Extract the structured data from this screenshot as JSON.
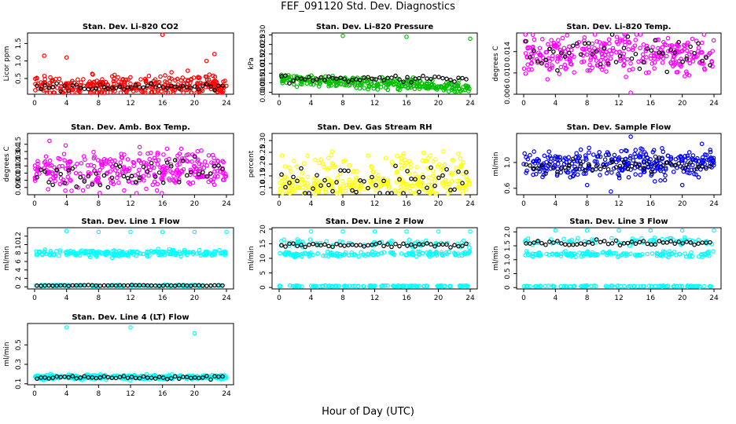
{
  "page": {
    "title": "FEF_091120  Std. Dev. Diagnostics",
    "xlabel": "Hour of Day (UTC)"
  },
  "chart_data": [
    {
      "type": "scatter",
      "title": "Stan. Dev. Li-820 CO2",
      "ylabel": "Licor ppm",
      "color": "#ff0000",
      "xlim": [
        0,
        24
      ],
      "ylim": [
        0.05,
        1.8
      ],
      "yticks": [
        0.5,
        1.0,
        1.5
      ],
      "ytick_labels": [
        "0.5",
        "1.0",
        "1.5"
      ],
      "xticks": [
        0,
        4,
        8,
        12,
        16,
        20,
        24
      ],
      "base": 0.3,
      "spread": 0.15,
      "outliers": [
        [
          16,
          1.75
        ],
        [
          22.5,
          1.2
        ],
        [
          1.2,
          1.15
        ],
        [
          4,
          1.1
        ],
        [
          21.5,
          1.0
        ]
      ],
      "black_base": 0.25,
      "black_spread": 0.05
    },
    {
      "type": "scatter",
      "title": "Stan. Dev. Li-820 Pressure",
      "ylabel": "kPa",
      "color": "#00c000",
      "xlim": [
        0,
        24
      ],
      "ylim": [
        -0.001,
        0.031
      ],
      "yticks": [
        0,
        0.005,
        0.01,
        0.015,
        0.02,
        0.025,
        0.03
      ],
      "ytick_labels": [
        "0.000",
        "0.005",
        "0.010",
        "0.015",
        "0.020",
        "0.025",
        "0.030"
      ],
      "xticks": [
        0,
        4,
        8,
        12,
        16,
        20,
        24
      ],
      "base": 0.007,
      "spread": 0.0015,
      "trend": -0.0002,
      "outliers": [
        [
          8,
          0.0295
        ],
        [
          16,
          0.029
        ],
        [
          24,
          0.028
        ]
      ],
      "black_base": 0.007,
      "black_spread": 0.001
    },
    {
      "type": "scatter",
      "title": "Stan. Dev. Li-820 Temp.",
      "ylabel": "degrees C",
      "color": "#ff00ff",
      "xlim": [
        0,
        24
      ],
      "ylim": [
        0.006,
        0.0175
      ],
      "yticks": [
        0.006,
        0.01,
        0.014
      ],
      "ytick_labels": [
        "0.006",
        "0.010",
        "0.014"
      ],
      "xticks": [
        0,
        4,
        8,
        12,
        16,
        20,
        24
      ],
      "base": 0.0135,
      "spread": 0.0018,
      "outliers": [
        [
          13.5,
          0.0062
        ],
        [
          3,
          0.0088
        ]
      ],
      "black_base": 0.0135,
      "black_spread": 0.0015
    },
    {
      "type": "scatter",
      "title": "Stan. Dev. Amb. Box Temp.",
      "ylabel": "degrees C",
      "color": "#ff00ff",
      "xlim": [
        0,
        24
      ],
      "ylim": [
        0.08,
        0.165
      ],
      "yticks": [
        0.09,
        0.1,
        0.11,
        0.12,
        0.13,
        0.14,
        0.15
      ],
      "ytick_labels": [
        "0.09",
        "0.10",
        "0.11",
        "0.12",
        "0.13",
        "0.14",
        "0.15"
      ],
      "xticks": [
        0,
        4,
        8,
        12,
        16,
        20,
        24
      ],
      "base": 0.115,
      "spread": 0.013,
      "outliers": [],
      "black_base": 0.11,
      "black_spread": 0.01
    },
    {
      "type": "scatter",
      "title": "Stan. Dev. Gas Stream RH",
      "ylabel": "percent",
      "color": "#ffff00",
      "xlim": [
        0,
        24
      ],
      "ylim": [
        0.07,
        0.33
      ],
      "yticks": [
        0.1,
        0.15,
        0.2,
        0.25,
        0.3
      ],
      "ytick_labels": [
        "0.10",
        "0.15",
        "0.20",
        "0.25",
        "0.30"
      ],
      "xticks": [
        0,
        4,
        8,
        12,
        16,
        20,
        24
      ],
      "base": 0.11,
      "spread": 0.02,
      "outliers": [],
      "upper_band": 0.2,
      "black_base": 0.12,
      "black_spread": 0.04
    },
    {
      "type": "scatter",
      "title": "Stan. Dev. Sample Flow",
      "ylabel": "ml/min",
      "color": "#0000ff",
      "xlim": [
        0,
        24
      ],
      "ylim": [
        0.5,
        1.45
      ],
      "yticks": [
        0.6,
        1.0
      ],
      "ytick_labels": [
        "0.6",
        "1.0"
      ],
      "xticks": [
        0,
        4,
        8,
        12,
        16,
        20,
        24
      ],
      "base": 1.0,
      "spread": 0.1,
      "outliers": [
        [
          13.5,
          1.4
        ],
        [
          11,
          0.55
        ],
        [
          20,
          0.65
        ],
        [
          8,
          0.65
        ]
      ],
      "black_base": 0.95,
      "black_spread": 0.05
    },
    {
      "type": "scatter",
      "title": "Stan. Dev. Line 1 Flow",
      "ylabel": "ml/min",
      "color": "#00ffff",
      "xlim": [
        0,
        24
      ],
      "ylim": [
        -0.5,
        14
      ],
      "yticks": [
        0,
        2,
        4,
        6,
        8,
        10,
        12
      ],
      "ytick_labels": [
        "0",
        "2",
        "4",
        "6",
        "8",
        "10",
        "12"
      ],
      "xticks": [
        0,
        4,
        8,
        12,
        16,
        20,
        24
      ],
      "base": 8.0,
      "spread": 0.4,
      "lower_band": 0.3,
      "outliers": [
        [
          4,
          13.2
        ],
        [
          8,
          13.0
        ],
        [
          12,
          13.0
        ],
        [
          16,
          13.0
        ],
        [
          20,
          13.0
        ],
        [
          24,
          13.0
        ]
      ],
      "black_base": 0.3,
      "black_spread": 0.05
    },
    {
      "type": "scatter",
      "title": "Stan. Dev. Line 2 Flow",
      "ylabel": "ml/min",
      "color": "#00ffff",
      "xlim": [
        0,
        24
      ],
      "ylim": [
        -0.5,
        20.5
      ],
      "yticks": [
        0,
        5,
        10,
        15,
        20
      ],
      "ytick_labels": [
        "0",
        "5",
        "10",
        "15",
        "20"
      ],
      "xticks": [
        0,
        4,
        8,
        12,
        16,
        20,
        24
      ],
      "base": 11.5,
      "spread": 0.4,
      "lower_band": 0.5,
      "upper_band": 15,
      "outliers": [
        [
          4,
          19.2
        ],
        [
          8,
          19.2
        ],
        [
          12,
          19.2
        ],
        [
          16,
          19.2
        ],
        [
          20,
          19.2
        ],
        [
          24,
          19.2
        ]
      ],
      "black_base": 14.5,
      "black_spread": 0.4
    },
    {
      "type": "scatter",
      "title": "Stan. Dev. Line 3 Flow",
      "ylabel": "ml/min",
      "color": "#00ffff",
      "xlim": [
        0,
        24
      ],
      "ylim": [
        -0.05,
        2.15
      ],
      "yticks": [
        0,
        0.5,
        1.0,
        1.5,
        2.0
      ],
      "ytick_labels": [
        "0",
        "0.5",
        "1.0",
        "1.5",
        "2.0"
      ],
      "xticks": [
        0,
        4,
        8,
        12,
        16,
        20,
        24
      ],
      "base": 1.2,
      "spread": 0.05,
      "lower_band": 0.05,
      "upper_band": 1.65,
      "outliers": [
        [
          4,
          2.05
        ],
        [
          8,
          2.05
        ],
        [
          12,
          2.05
        ],
        [
          16,
          2.05
        ],
        [
          20,
          2.05
        ],
        [
          24,
          2.05
        ]
      ],
      "black_base": 1.6,
      "black_spread": 0.05
    },
    {
      "type": "scatter",
      "title": "Stan. Dev. Line 4 (LT) Flow",
      "ylabel": "ml/min",
      "color": "#00ffff",
      "xlim": [
        0,
        24
      ],
      "ylim": [
        0.09,
        0.72
      ],
      "yticks": [
        0.1,
        0.3,
        0.5
      ],
      "ytick_labels": [
        "0.1",
        "0.3",
        "0.5"
      ],
      "xticks": [
        0,
        4,
        8,
        12,
        16,
        20,
        24
      ],
      "base": 0.17,
      "spread": 0.012,
      "outliers": [
        [
          4,
          0.68
        ],
        [
          12,
          0.68
        ],
        [
          20,
          0.62
        ]
      ],
      "black_base": 0.165,
      "black_spread": 0.01
    }
  ]
}
